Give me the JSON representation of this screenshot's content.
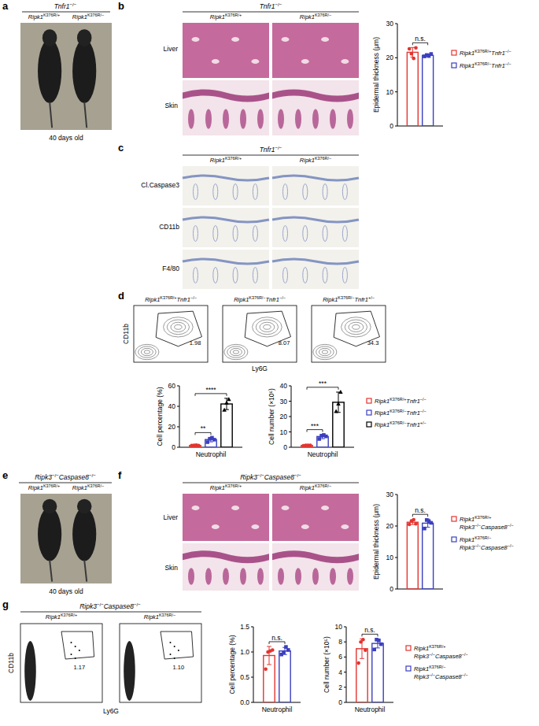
{
  "figure": {
    "panel_labels": [
      "a",
      "b",
      "c",
      "d",
      "e",
      "f",
      "g"
    ],
    "a": {
      "header": "Tnfr1−/−",
      "columns": [
        "Ripk1K376R/+",
        "Ripk1K376R/−"
      ],
      "caption": "40 days old"
    },
    "b": {
      "header": "Tnfr1−/−",
      "columns": [
        "Ripk1K376R/+",
        "Ripk1K376R/−"
      ],
      "rows": [
        "Liver",
        "Skin"
      ]
    },
    "c": {
      "header": "Tnfr1−/−",
      "columns": [
        "Ripk1K376R/+",
        "Ripk1K376R/−"
      ],
      "rows": [
        "Cl.Caspase3",
        "CD11b",
        "F4/80"
      ]
    },
    "d": {
      "plots": [
        {
          "title": "Ripk1K376R/+Tnfr1−/−",
          "gate": "1.98"
        },
        {
          "title": "Ripk1K376R/−Tnfr1−/−",
          "gate": "8.07"
        },
        {
          "title": "Ripk1K376R/−Tnfr1+/−",
          "gate": "34.3"
        }
      ],
      "y_label": "CD11b",
      "x_label": "Ly6G"
    },
    "e": {
      "header": "Ripk3−/−Caspase8−/−",
      "columns": [
        "Ripk1K376R/+",
        "Ripk1K376R/−"
      ],
      "caption": "40 days old"
    },
    "f": {
      "header": "Ripk3−/−Caspase8−/−",
      "columns": [
        "Ripk1K376R/+",
        "Ripk1K376R/−"
      ],
      "rows": [
        "Liver",
        "Skin"
      ]
    },
    "g": {
      "header": "Ripk3−/−Caspase8−/−",
      "columns": [
        "Ripk1K376R/+",
        "Ripk1K376R/−"
      ],
      "gates": [
        "1.17",
        "1.10"
      ],
      "y_label": "CD11b",
      "x_label": "Ly6G"
    }
  },
  "chart_data": [
    {
      "type": "bar",
      "categories": [
        null
      ],
      "y_label": "Epidermal thickness (μm)",
      "ylim": [
        0,
        30
      ],
      "yticks": [
        0,
        10,
        20,
        30
      ],
      "legend": "right",
      "series": [
        {
          "name": "Ripk1K376R/+Tnfr1−/−",
          "color": "#e3342f",
          "marker": "circle",
          "values": [
            21.6
          ],
          "errors": [
            1.4
          ],
          "points": [
            [
              22.6,
              21.2,
              19.8,
              22.9
            ]
          ]
        },
        {
          "name": "Ripk1K376R/−Tnfr1−/−",
          "color": "#3b3fbf",
          "marker": "square",
          "values": [
            20.7
          ],
          "errors": [
            0.4
          ],
          "points": [
            [
              20.4,
              20.8,
              20.5,
              21.1
            ]
          ]
        }
      ],
      "annotations": [
        {
          "text": "n.s.",
          "series": [
            0,
            1
          ]
        }
      ]
    },
    {
      "type": "bar",
      "categories": [
        "Neutrophil"
      ],
      "y_label": "Cell percentage (%)",
      "ylim": [
        0,
        60
      ],
      "yticks": [
        0,
        20,
        40,
        60
      ],
      "series": [
        {
          "color": "#e3342f",
          "marker": "circle",
          "values": [
            1.8
          ],
          "errors": [
            0.2
          ],
          "points": [
            [
              1.6,
              1.8,
              2.0,
              1.7
            ]
          ]
        },
        {
          "color": "#3b3fbf",
          "marker": "square",
          "values": [
            7.5
          ],
          "errors": [
            2.2
          ],
          "points": [
            [
              5.0,
              8.2,
              9.3,
              7.4
            ]
          ]
        },
        {
          "color": "#000000",
          "marker": "triangle",
          "values": [
            42.3
          ],
          "errors": [
            5.5
          ],
          "points": [
            [
              36.5,
              43.5,
              47.0
            ]
          ]
        }
      ],
      "annotations": [
        {
          "text": "**",
          "series": [
            0,
            1
          ]
        },
        {
          "text": "****",
          "series": [
            0,
            2
          ]
        }
      ]
    },
    {
      "type": "bar",
      "categories": [
        "Neutrophil"
      ],
      "y_label": "Cell number (×10⁶)",
      "ylim": [
        0,
        40
      ],
      "yticks": [
        0,
        10,
        20,
        30,
        40
      ],
      "legend": "right",
      "series": [
        {
          "name": "Ripk1K376R/+Tnfr1−/−",
          "color": "#e3342f",
          "marker": "circle",
          "values": [
            1.2
          ],
          "errors": [
            0.2
          ],
          "points": [
            [
              1.0,
              1.3,
              1.2,
              1.3
            ]
          ]
        },
        {
          "name": "Ripk1K376R/−Tnfr1−/−",
          "color": "#3b3fbf",
          "marker": "square",
          "values": [
            7.0
          ],
          "errors": [
            1.4
          ],
          "points": [
            [
              5.4,
              7.5,
              8.0,
              7.1
            ]
          ]
        },
        {
          "name": "Ripk1K376R/−Tnfr1+/−",
          "color": "#000000",
          "marker": "triangle",
          "values": [
            29.3
          ],
          "errors": [
            6.6
          ],
          "points": [
            [
              23.5,
              28.4,
              36.0
            ]
          ]
        }
      ],
      "annotations": [
        {
          "text": "***",
          "series": [
            0,
            1
          ]
        },
        {
          "text": "***",
          "series": [
            0,
            2
          ]
        }
      ]
    },
    {
      "type": "bar",
      "categories": [
        null
      ],
      "y_label": "Epidermal thickness (μm)",
      "ylim": [
        0,
        30
      ],
      "yticks": [
        0,
        10,
        20,
        30
      ],
      "legend": "right",
      "series": [
        {
          "name": "Ripk1K376R/+Ripk3−/−Caspase8−/−",
          "color": "#e3342f",
          "marker": "circle",
          "values": [
            21.2
          ],
          "errors": [
            0.7
          ],
          "points": [
            [
              20.5,
              21.6,
              22.0,
              20.7
            ]
          ]
        },
        {
          "name": "Ripk1K376R/−Ripk3−/−Caspase8−/−",
          "color": "#3b3fbf",
          "marker": "square",
          "values": [
            20.9
          ],
          "errors": [
            1.3
          ],
          "points": [
            [
              19.2,
              21.9,
              21.5,
              21.0
            ]
          ]
        }
      ],
      "annotations": [
        {
          "text": "n.s.",
          "series": [
            0,
            1
          ]
        }
      ]
    },
    {
      "type": "bar",
      "categories": [
        "Neutrophil"
      ],
      "y_label": "Cell percentage (%)",
      "ylim": [
        0,
        1.5
      ],
      "yticks": [
        {
          "value": 0,
          "label": "0.0"
        },
        0.5,
        {
          "value": 1,
          "label": "1.0"
        },
        {
          "value": 1.5,
          "label": "1.5"
        }
      ],
      "series": [
        {
          "color": "#e3342f",
          "marker": "circle",
          "values": [
            0.93
          ],
          "errors": [
            0.18
          ],
          "points": [
            [
              0.66,
              1.0,
              1.02,
              1.04
            ]
          ]
        },
        {
          "color": "#3b3fbf",
          "marker": "square",
          "values": [
            1.02
          ],
          "errors": [
            0.07
          ],
          "points": [
            [
              0.95,
              0.99,
              1.1,
              1.04
            ]
          ]
        }
      ],
      "annotations": [
        {
          "text": "n.s.",
          "series": [
            0,
            1
          ]
        }
      ]
    },
    {
      "type": "bar",
      "categories": [
        "Neutrophil"
      ],
      "y_label": "Cell number (×10⁵)",
      "ylim": [
        0,
        10
      ],
      "yticks": [
        0,
        2,
        4,
        6,
        8,
        10
      ],
      "legend": "right",
      "series": [
        {
          "name": "Ripk1K376R/+Ripk3−/−Caspase8−/−",
          "color": "#e3342f",
          "marker": "circle",
          "values": [
            7.1
          ],
          "errors": [
            1.3
          ],
          "points": [
            [
              5.2,
              8.0,
              8.3,
              6.9
            ]
          ]
        },
        {
          "name": "Ripk1K376R/−Ripk3−/−Caspase8−/−",
          "color": "#3b3fbf",
          "marker": "square",
          "values": [
            7.8
          ],
          "errors": [
            0.6
          ],
          "points": [
            [
              7.0,
              8.3,
              8.2,
              7.7
            ]
          ]
        }
      ],
      "annotations": [
        {
          "text": "n.s.",
          "series": [
            0,
            1
          ]
        }
      ]
    }
  ]
}
